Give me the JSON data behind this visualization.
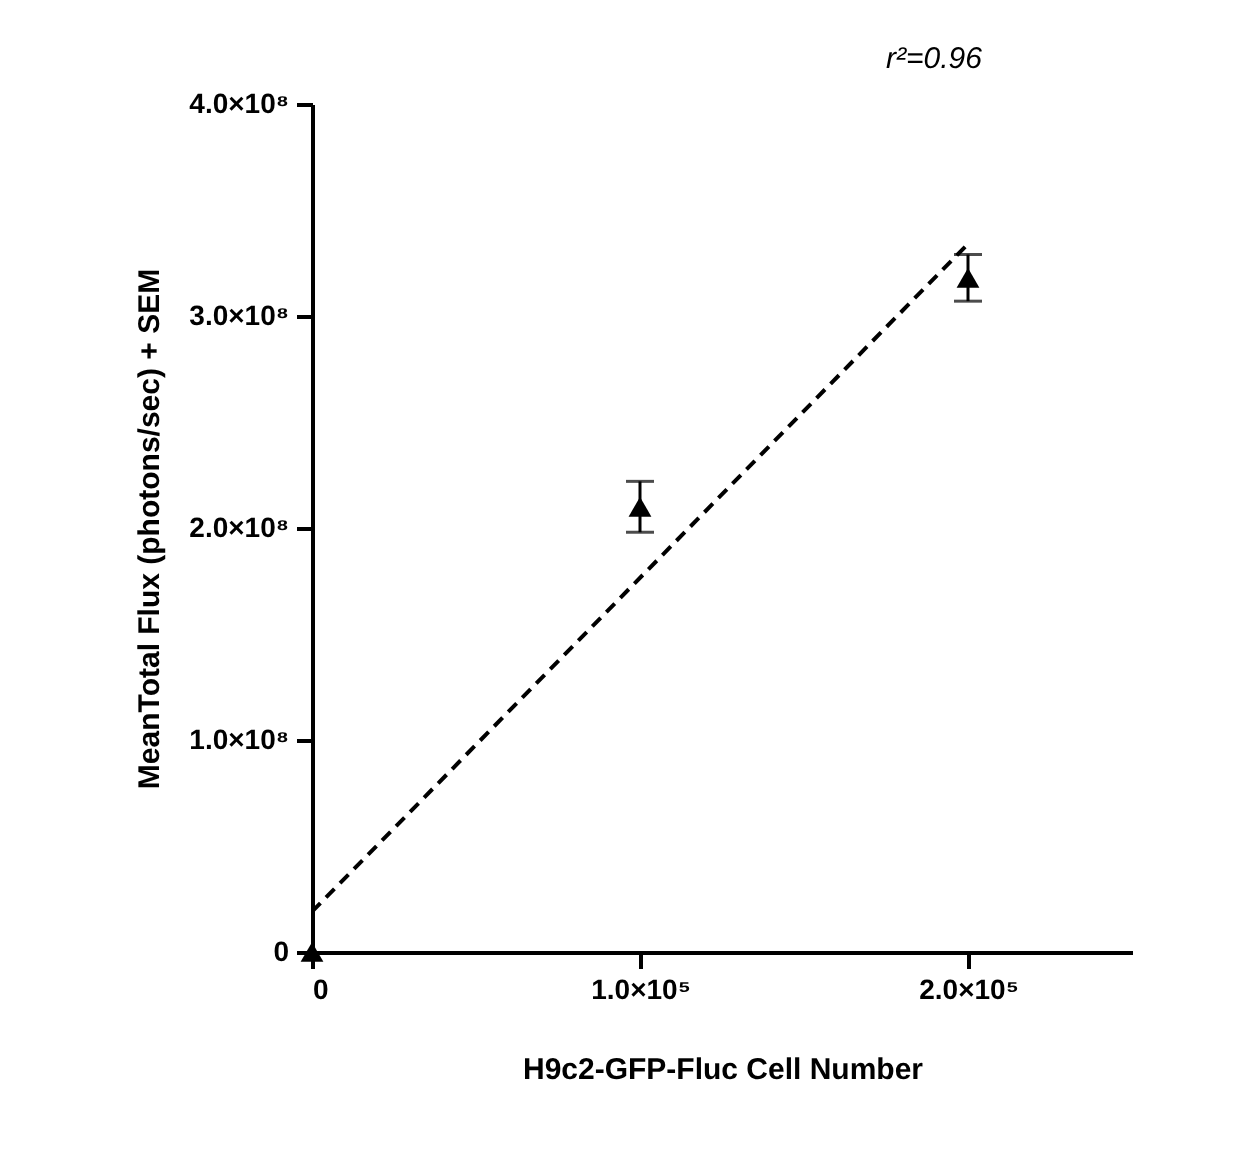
{
  "chart_data": {
    "type": "scatter",
    "xlabel": "H9c2-GFP-Fluc Cell Number",
    "ylabel": "MeanTotal Flux (photons/sec) + SEM",
    "xlim": [
      0,
      250000
    ],
    "ylim": [
      0,
      400000000
    ],
    "xticks": [
      0,
      {
        "value": 100000,
        "label": "1.0×10⁵"
      },
      {
        "value": 200000,
        "label": "2.0×10⁵"
      }
    ],
    "yticks": [
      0,
      {
        "value": 100000000,
        "label": "1.0×10⁸"
      },
      {
        "value": 200000000,
        "label": "2.0×10⁸"
      },
      {
        "value": 300000000,
        "label": "3.0×10⁸"
      },
      {
        "value": 400000000,
        "label": "4.0×10⁸"
      }
    ],
    "x": [
      0,
      100000,
      200000
    ],
    "series": [
      {
        "color": "#000000",
        "marker": "triangle",
        "values": [
          0,
          210000000,
          318000000
        ],
        "errors": [
          null,
          12000000,
          11000000
        ]
      },
      {
        "type": "line",
        "color": "#000000",
        "line_style": "dashed",
        "marker": "none",
        "x": [
          0,
          200000
        ],
        "values": [
          19000000,
          334000000
        ]
      }
    ],
    "annotations": [
      "r²=0.96"
    ],
    "grid": false
  }
}
